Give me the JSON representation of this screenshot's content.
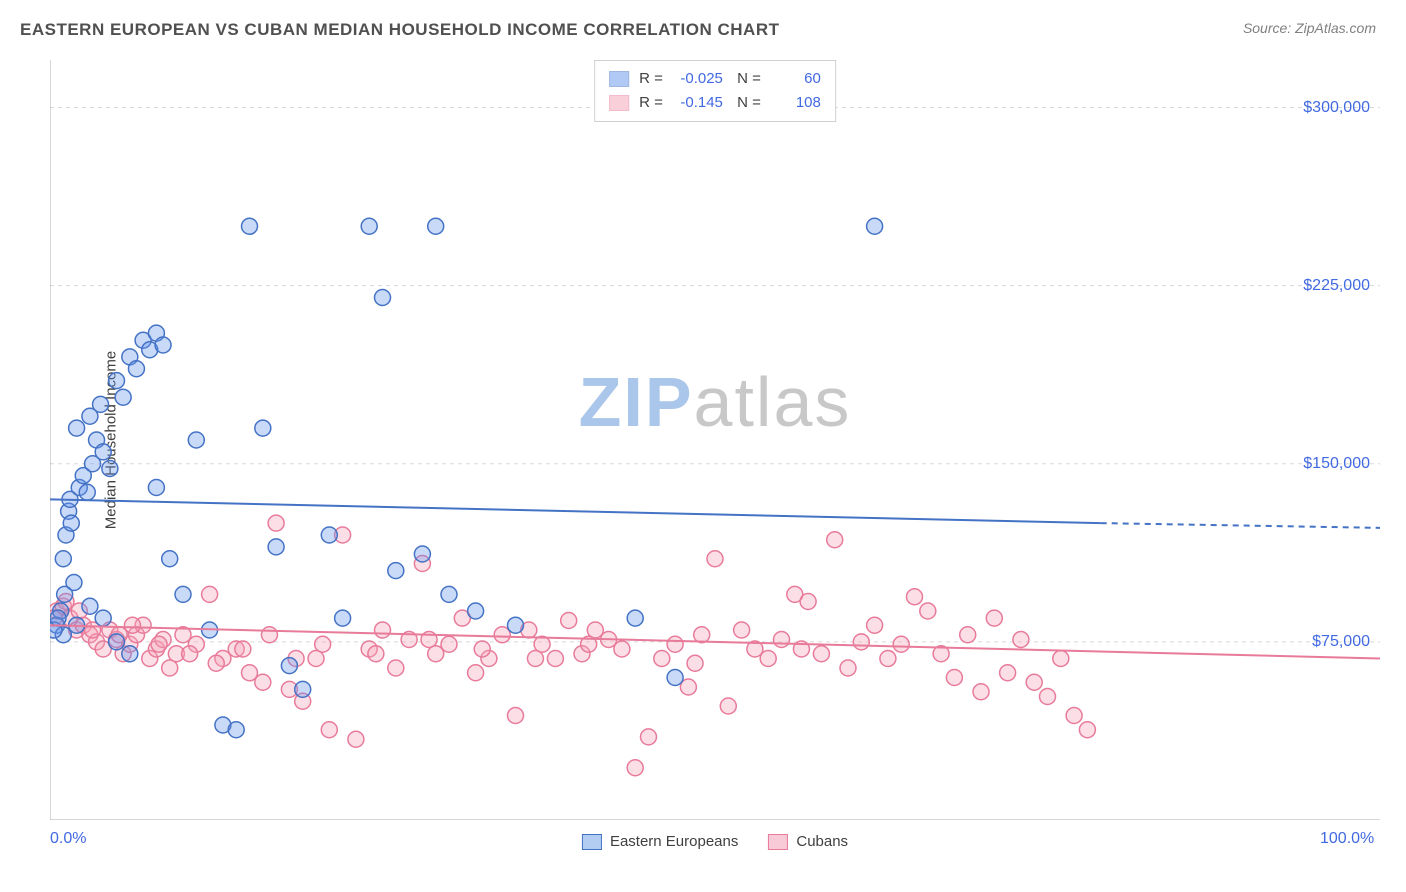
{
  "header": {
    "title": "EASTERN EUROPEAN VS CUBAN MEDIAN HOUSEHOLD INCOME CORRELATION CHART",
    "source_label": "Source:",
    "source_name": "ZipAtlas.com"
  },
  "chart": {
    "type": "scatter",
    "y_axis_label": "Median Household Income",
    "xlim": [
      0,
      100
    ],
    "ylim": [
      0,
      320000
    ],
    "x_ticks": [
      {
        "pos": 0,
        "label": "0.0%"
      },
      {
        "pos": 100,
        "label": "100.0%"
      }
    ],
    "y_ticks": [
      {
        "val": 75000,
        "label": "$75,000"
      },
      {
        "val": 150000,
        "label": "$150,000"
      },
      {
        "val": 225000,
        "label": "$225,000"
      },
      {
        "val": 300000,
        "label": "$300,000"
      }
    ],
    "grid_color": "#d8d8d8",
    "background_color": "#ffffff",
    "axis_color": "#b0b0b0",
    "tick_label_color": "#4169e1",
    "marker_radius": 8,
    "marker_fill_opacity": 0.35,
    "marker_stroke_width": 1.5,
    "trend_line_width": 2,
    "series": [
      {
        "name": "Eastern Europeans",
        "color": "#6495ed",
        "stroke": "#4472c4",
        "R": "-0.025",
        "N": "60",
        "trend": {
          "x1": 0,
          "y1": 135000,
          "x2": 79,
          "y2": 125000,
          "x2_dash": 100,
          "y2_dash": 123000
        },
        "points": [
          [
            0.5,
            82000
          ],
          [
            0.8,
            88000
          ],
          [
            1.0,
            110000
          ],
          [
            1.2,
            120000
          ],
          [
            1.4,
            130000
          ],
          [
            1.5,
            135000
          ],
          [
            1.6,
            125000
          ],
          [
            1.8,
            100000
          ],
          [
            2.0,
            165000
          ],
          [
            2.2,
            140000
          ],
          [
            2.5,
            145000
          ],
          [
            2.8,
            138000
          ],
          [
            3.0,
            170000
          ],
          [
            3.2,
            150000
          ],
          [
            3.5,
            160000
          ],
          [
            3.8,
            175000
          ],
          [
            4.0,
            155000
          ],
          [
            4.5,
            148000
          ],
          [
            5.0,
            185000
          ],
          [
            5.5,
            178000
          ],
          [
            6.0,
            195000
          ],
          [
            6.5,
            190000
          ],
          [
            7.0,
            202000
          ],
          [
            7.5,
            198000
          ],
          [
            8.0,
            205000
          ],
          [
            8.5,
            200000
          ],
          [
            3.0,
            90000
          ],
          [
            4.0,
            85000
          ],
          [
            5.0,
            75000
          ],
          [
            6.0,
            70000
          ],
          [
            8.0,
            140000
          ],
          [
            9.0,
            110000
          ],
          [
            10.0,
            95000
          ],
          [
            11.0,
            160000
          ],
          [
            12.0,
            80000
          ],
          [
            13.0,
            40000
          ],
          [
            14.0,
            38000
          ],
          [
            15.0,
            250000
          ],
          [
            16.0,
            165000
          ],
          [
            17.0,
            115000
          ],
          [
            18.0,
            65000
          ],
          [
            19.0,
            55000
          ],
          [
            21.0,
            120000
          ],
          [
            22.0,
            85000
          ],
          [
            24.0,
            250000
          ],
          [
            25.0,
            220000
          ],
          [
            26.0,
            105000
          ],
          [
            28.0,
            112000
          ],
          [
            29.0,
            250000
          ],
          [
            30.0,
            95000
          ],
          [
            32.0,
            88000
          ],
          [
            35.0,
            82000
          ],
          [
            44.0,
            85000
          ],
          [
            47.0,
            60000
          ],
          [
            62.0,
            250000
          ],
          [
            1.0,
            78000
          ],
          [
            2.0,
            82000
          ],
          [
            0.3,
            80000
          ],
          [
            0.6,
            85000
          ],
          [
            1.1,
            95000
          ]
        ]
      },
      {
        "name": "Cubans",
        "color": "#f5a3b7",
        "stroke": "#e87a9a",
        "R": "-0.145",
        "N": "108",
        "trend": {
          "x1": 0,
          "y1": 82000,
          "x2": 100,
          "y2": 68000,
          "x2_dash": 100,
          "y2_dash": 68000
        },
        "points": [
          [
            0.5,
            88000
          ],
          [
            1.0,
            90000
          ],
          [
            1.5,
            85000
          ],
          [
            2.0,
            80000
          ],
          [
            2.5,
            82000
          ],
          [
            3.0,
            78000
          ],
          [
            3.5,
            75000
          ],
          [
            4.0,
            72000
          ],
          [
            4.5,
            80000
          ],
          [
            5.0,
            76000
          ],
          [
            5.5,
            70000
          ],
          [
            6.0,
            74000
          ],
          [
            6.5,
            78000
          ],
          [
            7.0,
            82000
          ],
          [
            7.5,
            68000
          ],
          [
            8.0,
            72000
          ],
          [
            8.5,
            76000
          ],
          [
            9.0,
            64000
          ],
          [
            9.5,
            70000
          ],
          [
            10.0,
            78000
          ],
          [
            11.0,
            74000
          ],
          [
            12.0,
            95000
          ],
          [
            13.0,
            68000
          ],
          [
            14.0,
            72000
          ],
          [
            15.0,
            62000
          ],
          [
            16.0,
            58000
          ],
          [
            17.0,
            125000
          ],
          [
            18.0,
            55000
          ],
          [
            19.0,
            50000
          ],
          [
            20.0,
            68000
          ],
          [
            21.0,
            38000
          ],
          [
            22.0,
            120000
          ],
          [
            23.0,
            34000
          ],
          [
            24.0,
            72000
          ],
          [
            25.0,
            80000
          ],
          [
            26.0,
            64000
          ],
          [
            27.0,
            76000
          ],
          [
            28.0,
            108000
          ],
          [
            29.0,
            70000
          ],
          [
            30.0,
            74000
          ],
          [
            31.0,
            85000
          ],
          [
            32.0,
            62000
          ],
          [
            33.0,
            68000
          ],
          [
            34.0,
            78000
          ],
          [
            35.0,
            44000
          ],
          [
            36.0,
            80000
          ],
          [
            37.0,
            74000
          ],
          [
            38.0,
            68000
          ],
          [
            39.0,
            84000
          ],
          [
            40.0,
            70000
          ],
          [
            41.0,
            80000
          ],
          [
            42.0,
            76000
          ],
          [
            43.0,
            72000
          ],
          [
            44.0,
            22000
          ],
          [
            45.0,
            35000
          ],
          [
            46.0,
            68000
          ],
          [
            47.0,
            74000
          ],
          [
            48.0,
            56000
          ],
          [
            49.0,
            78000
          ],
          [
            50.0,
            110000
          ],
          [
            51.0,
            48000
          ],
          [
            52.0,
            80000
          ],
          [
            53.0,
            72000
          ],
          [
            54.0,
            68000
          ],
          [
            55.0,
            76000
          ],
          [
            56.0,
            95000
          ],
          [
            57.0,
            92000
          ],
          [
            58.0,
            70000
          ],
          [
            59.0,
            118000
          ],
          [
            60.0,
            64000
          ],
          [
            61.0,
            75000
          ],
          [
            62.0,
            82000
          ],
          [
            63.0,
            68000
          ],
          [
            64.0,
            74000
          ],
          [
            65.0,
            94000
          ],
          [
            66.0,
            88000
          ],
          [
            67.0,
            70000
          ],
          [
            68.0,
            60000
          ],
          [
            69.0,
            78000
          ],
          [
            70.0,
            54000
          ],
          [
            71.0,
            85000
          ],
          [
            72.0,
            62000
          ],
          [
            73.0,
            76000
          ],
          [
            74.0,
            58000
          ],
          [
            75.0,
            52000
          ],
          [
            76.0,
            68000
          ],
          [
            77.0,
            44000
          ],
          [
            78.0,
            38000
          ],
          [
            0.3,
            85000
          ],
          [
            1.2,
            92000
          ],
          [
            2.2,
            88000
          ],
          [
            3.2,
            80000
          ],
          [
            5.2,
            78000
          ],
          [
            6.2,
            82000
          ],
          [
            8.2,
            74000
          ],
          [
            10.5,
            70000
          ],
          [
            12.5,
            66000
          ],
          [
            14.5,
            72000
          ],
          [
            16.5,
            78000
          ],
          [
            18.5,
            68000
          ],
          [
            20.5,
            74000
          ],
          [
            24.5,
            70000
          ],
          [
            28.5,
            76000
          ],
          [
            32.5,
            72000
          ],
          [
            36.5,
            68000
          ],
          [
            40.5,
            74000
          ],
          [
            48.5,
            66000
          ],
          [
            56.5,
            72000
          ]
        ]
      }
    ]
  },
  "watermark": {
    "zip": "ZIP",
    "atlas": "atlas"
  },
  "legend_bottom": [
    {
      "label": "Eastern Europeans",
      "fill": "#b3cdf2",
      "stroke": "#4472c4"
    },
    {
      "label": "Cubans",
      "fill": "#f8c9d6",
      "stroke": "#e87a9a"
    }
  ]
}
